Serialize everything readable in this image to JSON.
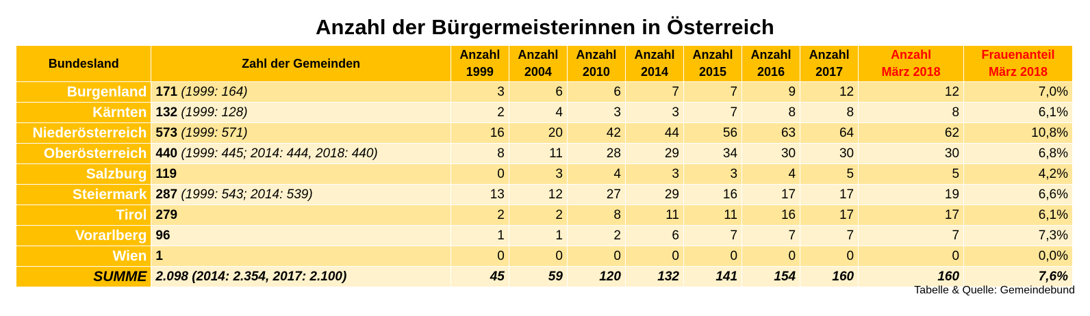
{
  "title": "Anzahl der Bürgermeisterinnen in Österreich",
  "header": {
    "bundesland": "Bundesland",
    "gemeinden": "Zahl der Gemeinden",
    "years": [
      {
        "line1": "Anzahl",
        "line2": "1999",
        "highlight": false
      },
      {
        "line1": "Anzahl",
        "line2": "2004",
        "highlight": false
      },
      {
        "line1": "Anzahl",
        "line2": "2010",
        "highlight": false
      },
      {
        "line1": "Anzahl",
        "line2": "2014",
        "highlight": false
      },
      {
        "line1": "Anzahl",
        "line2": "2015",
        "highlight": false
      },
      {
        "line1": "Anzahl",
        "line2": "2016",
        "highlight": false
      },
      {
        "line1": "Anzahl",
        "line2": "2017",
        "highlight": false
      },
      {
        "line1": "Anzahl",
        "line2": "März 2018",
        "highlight": true
      },
      {
        "line1": "Frauenanteil",
        "line2": "März 2018",
        "highlight": true
      }
    ]
  },
  "rows": [
    {
      "state": "Burgenland",
      "gem_bold": "171",
      "gem_note": "(1999: 164)",
      "values": [
        "3",
        "6",
        "6",
        "7",
        "7",
        "9",
        "12",
        "12",
        "7,0%"
      ]
    },
    {
      "state": "Kärnten",
      "gem_bold": "132",
      "gem_note": "(1999: 128)",
      "values": [
        "2",
        "4",
        "3",
        "3",
        "7",
        "8",
        "8",
        "8",
        "6,1%"
      ]
    },
    {
      "state": "Niederösterreich",
      "gem_bold": "573",
      "gem_note": "(1999: 571)",
      "values": [
        "16",
        "20",
        "42",
        "44",
        "56",
        "63",
        "64",
        "62",
        "10,8%"
      ]
    },
    {
      "state": "Oberösterreich",
      "gem_bold": "440",
      "gem_note": "(1999: 445; 2014: 444, 2018: 440)",
      "values": [
        "8",
        "11",
        "28",
        "29",
        "34",
        "30",
        "30",
        "30",
        "6,8%"
      ]
    },
    {
      "state": "Salzburg",
      "gem_bold": "119",
      "gem_note": "",
      "values": [
        "0",
        "3",
        "4",
        "3",
        "3",
        "4",
        "5",
        "5",
        "4,2%"
      ]
    },
    {
      "state": "Steiermark",
      "gem_bold": "287",
      "gem_note": "(1999: 543; 2014: 539)",
      "values": [
        "13",
        "12",
        "27",
        "29",
        "16",
        "17",
        "17",
        "19",
        "6,6%"
      ]
    },
    {
      "state": "Tirol",
      "gem_bold": "279",
      "gem_note": "",
      "values": [
        "2",
        "2",
        "8",
        "11",
        "11",
        "16",
        "17",
        "17",
        "6,1%"
      ]
    },
    {
      "state": "Vorarlberg",
      "gem_bold": "96",
      "gem_note": "",
      "values": [
        "1",
        "1",
        "2",
        "6",
        "7",
        "7",
        "7",
        "7",
        "7,3%"
      ]
    },
    {
      "state": "Wien",
      "gem_bold": "1",
      "gem_note": "",
      "values": [
        "0",
        "0",
        "0",
        "0",
        "0",
        "0",
        "0",
        "0",
        "0,0%"
      ]
    }
  ],
  "summary": {
    "label": "SUMME",
    "gemeinden": "2.098 (2014: 2.354, 2017: 2.100)",
    "values": [
      "45",
      "59",
      "120",
      "132",
      "141",
      "154",
      "160",
      "160",
      "7,6%"
    ]
  },
  "source": "Tabelle & Quelle: Gemeindebund",
  "colors": {
    "header_bg": "#ffc000",
    "row_dark": "#ffe699",
    "row_light": "#fff2cc",
    "highlight_text": "#ff0000"
  }
}
